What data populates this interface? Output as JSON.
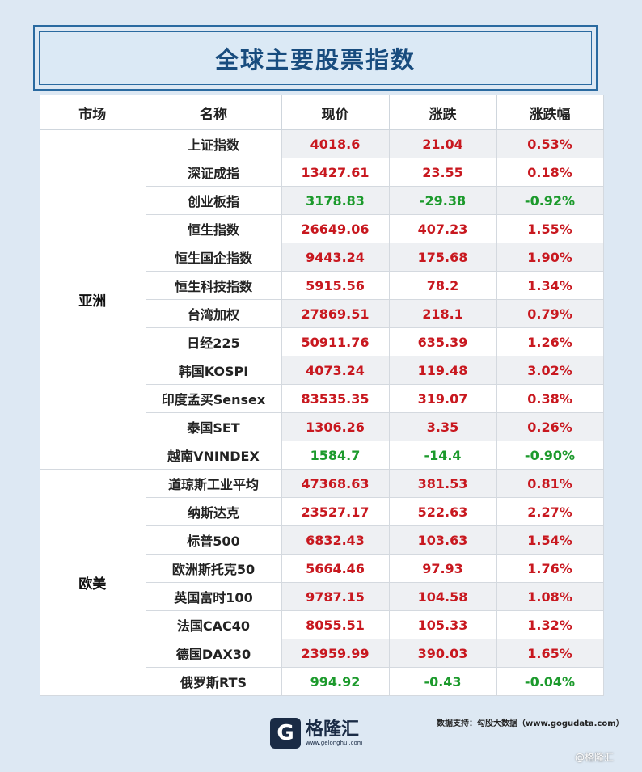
{
  "title": "全球主要股票指数",
  "headers": [
    "市场",
    "名称",
    "现价",
    "涨跌",
    "涨跌幅"
  ],
  "groups": [
    {
      "market": "亚洲",
      "rows": [
        {
          "name": "上证指数",
          "price": "4018.6",
          "change": "21.04",
          "pct": "0.53%",
          "trend": "up"
        },
        {
          "name": "深证成指",
          "price": "13427.61",
          "change": "23.55",
          "pct": "0.18%",
          "trend": "up"
        },
        {
          "name": "创业板指",
          "price": "3178.83",
          "change": "-29.38",
          "pct": "-0.92%",
          "trend": "down"
        },
        {
          "name": "恒生指数",
          "price": "26649.06",
          "change": "407.23",
          "pct": "1.55%",
          "trend": "up"
        },
        {
          "name": "恒生国企指数",
          "price": "9443.24",
          "change": "175.68",
          "pct": "1.90%",
          "trend": "up"
        },
        {
          "name": "恒生科技指数",
          "price": "5915.56",
          "change": "78.2",
          "pct": "1.34%",
          "trend": "up"
        },
        {
          "name": "台湾加权",
          "price": "27869.51",
          "change": "218.1",
          "pct": "0.79%",
          "trend": "up"
        },
        {
          "name": "日经225",
          "price": "50911.76",
          "change": "635.39",
          "pct": "1.26%",
          "trend": "up"
        },
        {
          "name": "韩国KOSPI",
          "price": "4073.24",
          "change": "119.48",
          "pct": "3.02%",
          "trend": "up"
        },
        {
          "name": "印度孟买Sensex",
          "price": "83535.35",
          "change": "319.07",
          "pct": "0.38%",
          "trend": "up"
        },
        {
          "name": "泰国SET",
          "price": "1306.26",
          "change": "3.35",
          "pct": "0.26%",
          "trend": "up"
        },
        {
          "name": "越南VNINDEX",
          "price": "1584.7",
          "change": "-14.4",
          "pct": "-0.90%",
          "trend": "down"
        }
      ]
    },
    {
      "market": "欧美",
      "rows": [
        {
          "name": "道琼斯工业平均",
          "price": "47368.63",
          "change": "381.53",
          "pct": "0.81%",
          "trend": "up"
        },
        {
          "name": "纳斯达克",
          "price": "23527.17",
          "change": "522.63",
          "pct": "2.27%",
          "trend": "up"
        },
        {
          "name": "标普500",
          "price": "6832.43",
          "change": "103.63",
          "pct": "1.54%",
          "trend": "up"
        },
        {
          "name": "欧洲斯托克50",
          "price": "5664.46",
          "change": "97.93",
          "pct": "1.76%",
          "trend": "up"
        },
        {
          "name": "英国富时100",
          "price": "9787.15",
          "change": "104.58",
          "pct": "1.08%",
          "trend": "up"
        },
        {
          "name": "法国CAC40",
          "price": "8055.51",
          "change": "105.33",
          "pct": "1.32%",
          "trend": "up"
        },
        {
          "name": "德国DAX30",
          "price": "23959.99",
          "change": "390.03",
          "pct": "1.65%",
          "trend": "up"
        },
        {
          "name": "俄罗斯RTS",
          "price": "994.92",
          "change": "-0.43",
          "pct": "-0.04%",
          "trend": "down"
        }
      ]
    }
  ],
  "footer": {
    "logo_mark": "G",
    "logo_name": "格隆汇",
    "logo_url": "www.gelonghui.com",
    "source": "数据支持：勾股大数据（www.gogudata.com）",
    "corner": "@格隆汇"
  },
  "colors": {
    "up": "#c8181f",
    "down": "#1c9a2c",
    "accent": "#184c7e"
  }
}
